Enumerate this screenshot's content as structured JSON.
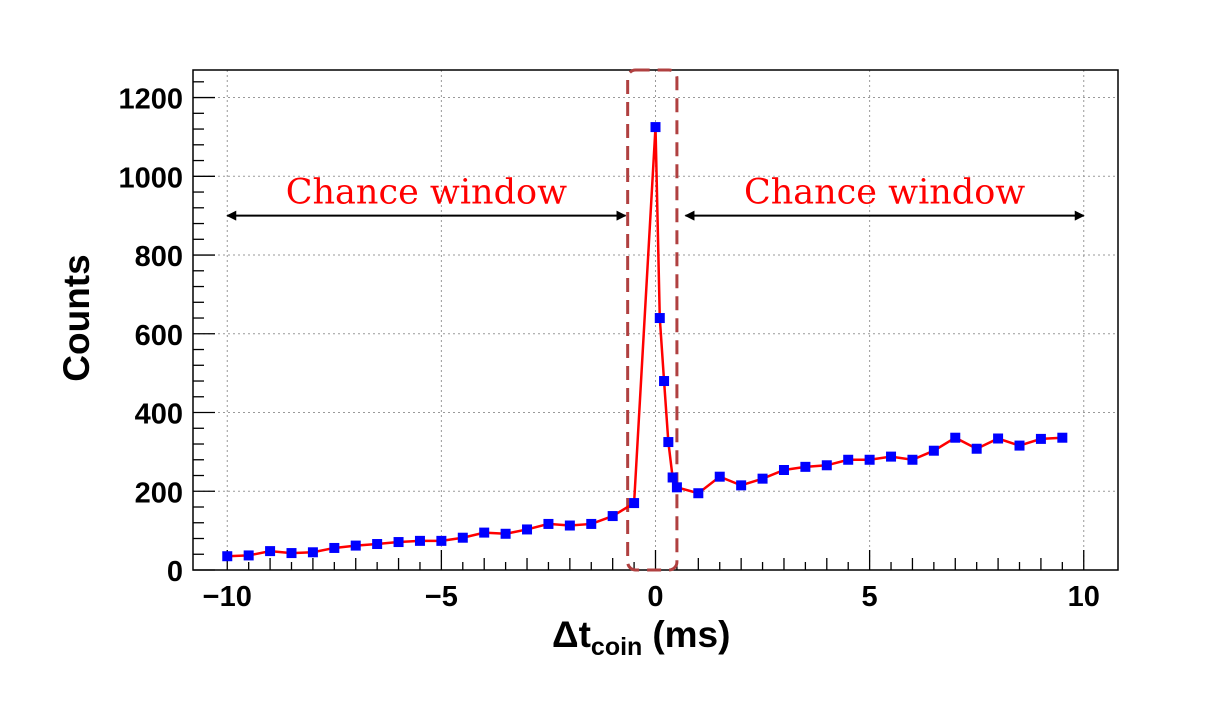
{
  "chart_data": {
    "type": "scatter",
    "title": "",
    "xlabel_main": "Δt",
    "xlabel_sub": "coin",
    "xlabel_unit": "(ms)",
    "ylabel": "Counts",
    "xlim": [
      -10.8,
      10.8
    ],
    "ylim": [
      0,
      1270
    ],
    "xticks": [
      -10,
      -5,
      0,
      5,
      10
    ],
    "xtick_labels": [
      "−10",
      "−5",
      "0",
      "5",
      "10"
    ],
    "yticks": [
      0,
      200,
      400,
      600,
      800,
      1000,
      1200
    ],
    "ytick_labels": [
      "0",
      "200",
      "400",
      "600",
      "800",
      "1000",
      "1200"
    ],
    "grid": true,
    "marker_color": "#0000ff",
    "line_color": "#ff0000",
    "series": [
      {
        "x": [
          -10,
          -9.5,
          -9,
          -8.5,
          -8,
          -7.5,
          -7,
          -6.5,
          -6,
          -5.5,
          -5,
          -4.5,
          -4,
          -3.5,
          -3,
          -2.5,
          -2,
          -1.5,
          -1,
          -0.5,
          0,
          0.1,
          0.2,
          0.3,
          0.4,
          0.5,
          1,
          1.5,
          2,
          2.5,
          3,
          3.5,
          4,
          4.5,
          5,
          5.5,
          6,
          6.5,
          7,
          7.5,
          8,
          8.5,
          9,
          9.5
        ],
        "y": [
          35,
          37,
          48,
          43,
          45,
          56,
          62,
          66,
          71,
          74,
          74,
          82,
          95,
          92,
          103,
          117,
          113,
          117,
          137,
          170,
          1125,
          640,
          480,
          325,
          235,
          210,
          195,
          237,
          215,
          232,
          254,
          262,
          266,
          280,
          280,
          288,
          280,
          303,
          336,
          308,
          334,
          316,
          333,
          336
        ]
      }
    ],
    "annotations": [
      {
        "text": "Chance window",
        "from_x": -10,
        "to_x": -0.7,
        "y": 900
      },
      {
        "text": "Chance window",
        "from_x": 0.7,
        "to_x": 10,
        "y": 900
      }
    ],
    "highlight": {
      "x_from": -0.65,
      "x_to": 0.5,
      "color": "#b04040",
      "style": "dashed"
    }
  }
}
